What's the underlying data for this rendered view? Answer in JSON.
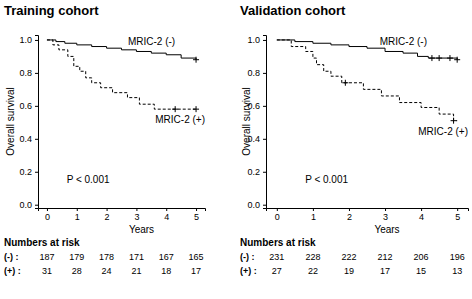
{
  "chart_data": [
    {
      "type": "line",
      "title": "Training cohort",
      "xlabel": "Years",
      "ylabel": "Overall survival",
      "annotation": "P < 0.001",
      "xlim": [
        -0.3,
        5.3
      ],
      "xticks": [
        0,
        1,
        2,
        3,
        4,
        5
      ],
      "ylim": [
        -0.02,
        1.03
      ],
      "yticks": [
        {
          "value": 0,
          "label": "0.0"
        },
        {
          "value": 0.2,
          "label": "0.2"
        },
        {
          "value": 0.4,
          "label": "0.4"
        },
        {
          "value": 0.6,
          "label": "0.6"
        },
        {
          "value": 0.8,
          "label": "0.8"
        },
        {
          "value": 1,
          "label": "1.0"
        }
      ],
      "series": [
        {
          "name": "MRIC-2 (-)",
          "color": "#000000",
          "line_style": "solid",
          "marker": "plus",
          "x": [
            0,
            0.3,
            0.6,
            1.0,
            1.5,
            2.0,
            2.5,
            3.0,
            3.5,
            4.0,
            4.5,
            5.0
          ],
          "values": [
            1.0,
            0.99,
            0.98,
            0.97,
            0.96,
            0.95,
            0.94,
            0.93,
            0.92,
            0.91,
            0.89,
            0.88
          ],
          "censored": [
            5.0
          ]
        },
        {
          "name": "MRIC-2 (+)",
          "color": "#000000",
          "line_style": "dashed",
          "marker": "plus",
          "x": [
            0,
            0.2,
            0.4,
            0.7,
            0.9,
            1.1,
            1.3,
            1.5,
            1.8,
            2.2,
            2.7,
            3.1,
            3.6,
            5.0
          ],
          "values": [
            1.0,
            0.97,
            0.94,
            0.9,
            0.84,
            0.81,
            0.77,
            0.74,
            0.71,
            0.68,
            0.65,
            0.61,
            0.58,
            0.58
          ],
          "censored": [
            4.3,
            5.0
          ]
        }
      ],
      "numbers_at_risk": {
        "title": "Numbers at risk",
        "rows": [
          {
            "label": "(-) :",
            "values": [
              187,
              179,
              178,
              171,
              167,
              165
            ]
          },
          {
            "label": "(+) :",
            "values": [
              31,
              28,
              24,
              21,
              18,
              17
            ]
          }
        ]
      }
    },
    {
      "type": "line",
      "title": "Validation cohort",
      "xlabel": "Years",
      "ylabel": "Overall survival",
      "annotation": "P < 0.001",
      "xlim": [
        -0.3,
        5.3
      ],
      "xticks": [
        0,
        1,
        2,
        3,
        4,
        5
      ],
      "ylim": [
        -0.02,
        1.03
      ],
      "yticks": [
        {
          "value": 0,
          "label": "0.0"
        },
        {
          "value": 0.2,
          "label": "0.2"
        },
        {
          "value": 0.4,
          "label": "0.4"
        },
        {
          "value": 0.6,
          "label": "0.6"
        },
        {
          "value": 0.8,
          "label": "0.8"
        },
        {
          "value": 1,
          "label": "1.0"
        }
      ],
      "series": [
        {
          "name": "MRIC-2 (-)",
          "color": "#000000",
          "line_style": "solid",
          "marker": "plus",
          "x": [
            0,
            0.5,
            1.0,
            1.5,
            2.0,
            2.5,
            3.0,
            3.5,
            3.9,
            4.2,
            5.0
          ],
          "values": [
            1.0,
            0.99,
            0.98,
            0.97,
            0.96,
            0.95,
            0.93,
            0.92,
            0.9,
            0.89,
            0.88
          ],
          "censored": [
            4.3,
            4.5,
            4.8,
            5.0
          ]
        },
        {
          "name": "MRIC-2 (+)",
          "color": "#000000",
          "line_style": "dashed",
          "marker": "plus",
          "x": [
            0,
            0.4,
            0.8,
            1.0,
            1.1,
            1.3,
            1.5,
            1.8,
            2.4,
            2.9,
            3.4,
            4.0,
            4.5,
            4.9,
            5.0
          ],
          "values": [
            1.0,
            0.96,
            0.93,
            0.89,
            0.85,
            0.81,
            0.78,
            0.74,
            0.7,
            0.66,
            0.62,
            0.59,
            0.55,
            0.51,
            0.51
          ],
          "censored": [
            1.9,
            4.9
          ]
        }
      ],
      "numbers_at_risk": {
        "title": "Numbers at risk",
        "rows": [
          {
            "label": "(-) :",
            "values": [
              231,
              228,
              222,
              212,
              206,
              196
            ]
          },
          {
            "label": "(+) :",
            "values": [
              27,
              22,
              19,
              17,
              15,
              13
            ]
          }
        ]
      }
    }
  ]
}
